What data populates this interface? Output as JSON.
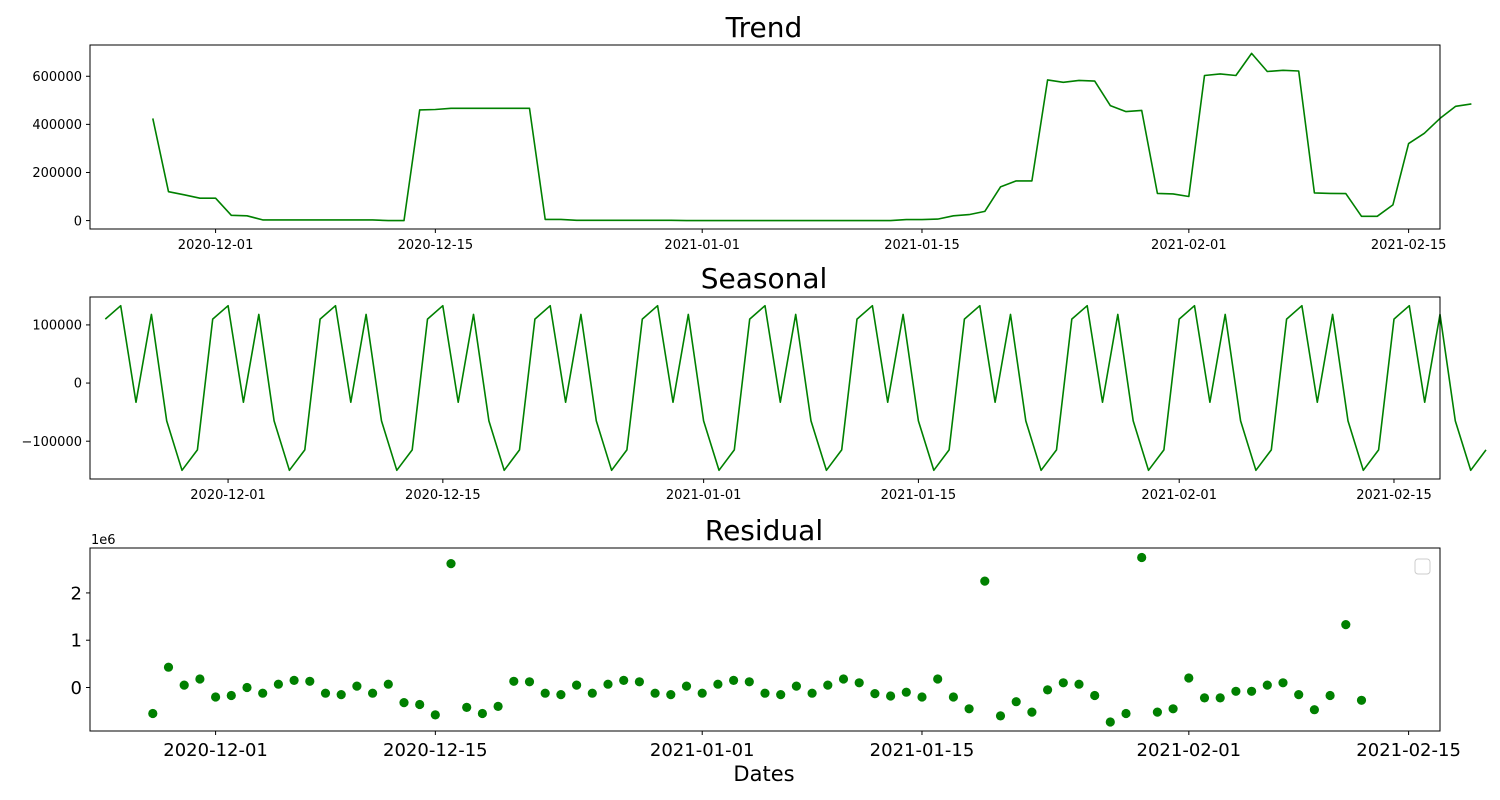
{
  "colors": {
    "series": "#008000",
    "axis": "#000000",
    "background": "#ffffff"
  },
  "chart_data": [
    {
      "type": "line",
      "title": "Trend",
      "xlim": [
        "2020-11-23",
        "2021-02-17"
      ],
      "ylim": [
        -35000,
        730000
      ],
      "xticks": [
        "2020-12-01",
        "2020-12-15",
        "2021-01-01",
        "2021-01-15",
        "2021-02-01",
        "2021-02-15"
      ],
      "yticks": [
        0,
        200000,
        400000,
        600000
      ],
      "ytick_labels": [
        "0",
        "200000",
        "400000",
        "600000"
      ],
      "x_start": "2020-11-27",
      "values": [
        425000,
        120000,
        107000,
        93000,
        93000,
        22000,
        20000,
        3000,
        3000,
        3000,
        3000,
        3000,
        3000,
        3000,
        3000,
        0,
        0,
        460000,
        462000,
        467000,
        467000,
        467000,
        467000,
        467000,
        467000,
        5000,
        5000,
        1000,
        1000,
        1000,
        1000,
        1000,
        1000,
        1000,
        0,
        0,
        0,
        0,
        0,
        0,
        0,
        0,
        0,
        0,
        0,
        0,
        0,
        0,
        4000,
        4000,
        6000,
        20000,
        25000,
        38000,
        140000,
        165000,
        165000,
        585000,
        575000,
        583000,
        580000,
        478000,
        453000,
        458000,
        113000,
        111000,
        100000,
        603000,
        610000,
        603000,
        695000,
        620000,
        625000,
        622000,
        115000,
        113000,
        112000,
        18000,
        18000,
        65000,
        320000,
        363000,
        425000,
        475000,
        485000
      ]
    },
    {
      "type": "line",
      "title": "Seasonal",
      "xlim": [
        "2020-11-22",
        "2021-02-18"
      ],
      "ylim": [
        -165000,
        148000
      ],
      "xticks": [
        "2020-12-01",
        "2020-12-15",
        "2021-01-01",
        "2021-01-15",
        "2021-02-01",
        "2021-02-15"
      ],
      "yticks": [
        -100000,
        0,
        100000
      ],
      "ytick_labels": [
        "−100000",
        "0",
        "100000"
      ],
      "x_start": "2020-11-23",
      "values": [
        110000,
        133000,
        -33000,
        118000,
        -65000,
        -150000,
        -115000,
        110000,
        133000,
        -33000,
        118000,
        -65000,
        -150000,
        -115000,
        110000,
        133000,
        -33000,
        118000,
        -65000,
        -150000,
        -115000,
        110000,
        133000,
        -33000,
        118000,
        -65000,
        -150000,
        -115000,
        110000,
        133000,
        -33000,
        118000,
        -65000,
        -150000,
        -115000,
        110000,
        133000,
        -33000,
        118000,
        -65000,
        -150000,
        -115000,
        110000,
        133000,
        -33000,
        118000,
        -65000,
        -150000,
        -115000,
        110000,
        133000,
        -33000,
        118000,
        -65000,
        -150000,
        -115000,
        110000,
        133000,
        -33000,
        118000,
        -65000,
        -150000,
        -115000,
        110000,
        133000,
        -33000,
        118000,
        -65000,
        -150000,
        -115000,
        110000,
        133000,
        -33000,
        118000,
        -65000,
        -150000,
        -115000,
        110000,
        133000,
        -33000,
        118000,
        -65000,
        -150000,
        -115000,
        110000,
        133000,
        -33000,
        118000,
        -65000,
        -150000,
        -115000
      ]
    },
    {
      "type": "scatter",
      "title": "Residual",
      "xlabel": "Dates",
      "offset_label": "1e6",
      "legend": "top-right (empty)",
      "xlim": [
        "2020-11-23",
        "2021-02-17"
      ],
      "ylim": [
        -0.92,
        2.95
      ],
      "xticks": [
        "2020-12-01",
        "2020-12-15",
        "2021-01-01",
        "2021-01-15",
        "2021-02-01",
        "2021-02-15"
      ],
      "yticks": [
        0,
        1,
        2
      ],
      "ytick_labels": [
        "0",
        "1",
        "2"
      ],
      "x_start": "2020-11-27",
      "values": [
        -0.55,
        0.43,
        0.05,
        0.18,
        -0.2,
        -0.17,
        0.0,
        -0.12,
        0.07,
        0.15,
        0.13,
        -0.12,
        -0.15,
        0.03,
        -0.12,
        0.07,
        -0.32,
        -0.36,
        -0.58,
        2.62,
        -0.42,
        -0.55,
        -0.4,
        0.13,
        0.12,
        -0.12,
        -0.15,
        0.05,
        -0.12,
        0.07,
        0.15,
        0.12,
        -0.12,
        -0.15,
        0.03,
        -0.12,
        0.07,
        0.15,
        0.12,
        -0.12,
        -0.15,
        0.03,
        -0.12,
        0.05,
        0.18,
        0.1,
        -0.13,
        -0.18,
        -0.1,
        -0.2,
        0.18,
        -0.2,
        -0.45,
        2.25,
        -0.6,
        -0.3,
        -0.52,
        -0.05,
        0.1,
        0.07,
        -0.17,
        -0.73,
        -0.55,
        2.75,
        -0.52,
        -0.45,
        0.2,
        -0.22,
        -0.22,
        -0.08,
        -0.08,
        0.05,
        0.1,
        -0.15,
        -0.47,
        -0.17,
        1.33,
        -0.27
      ]
    }
  ]
}
